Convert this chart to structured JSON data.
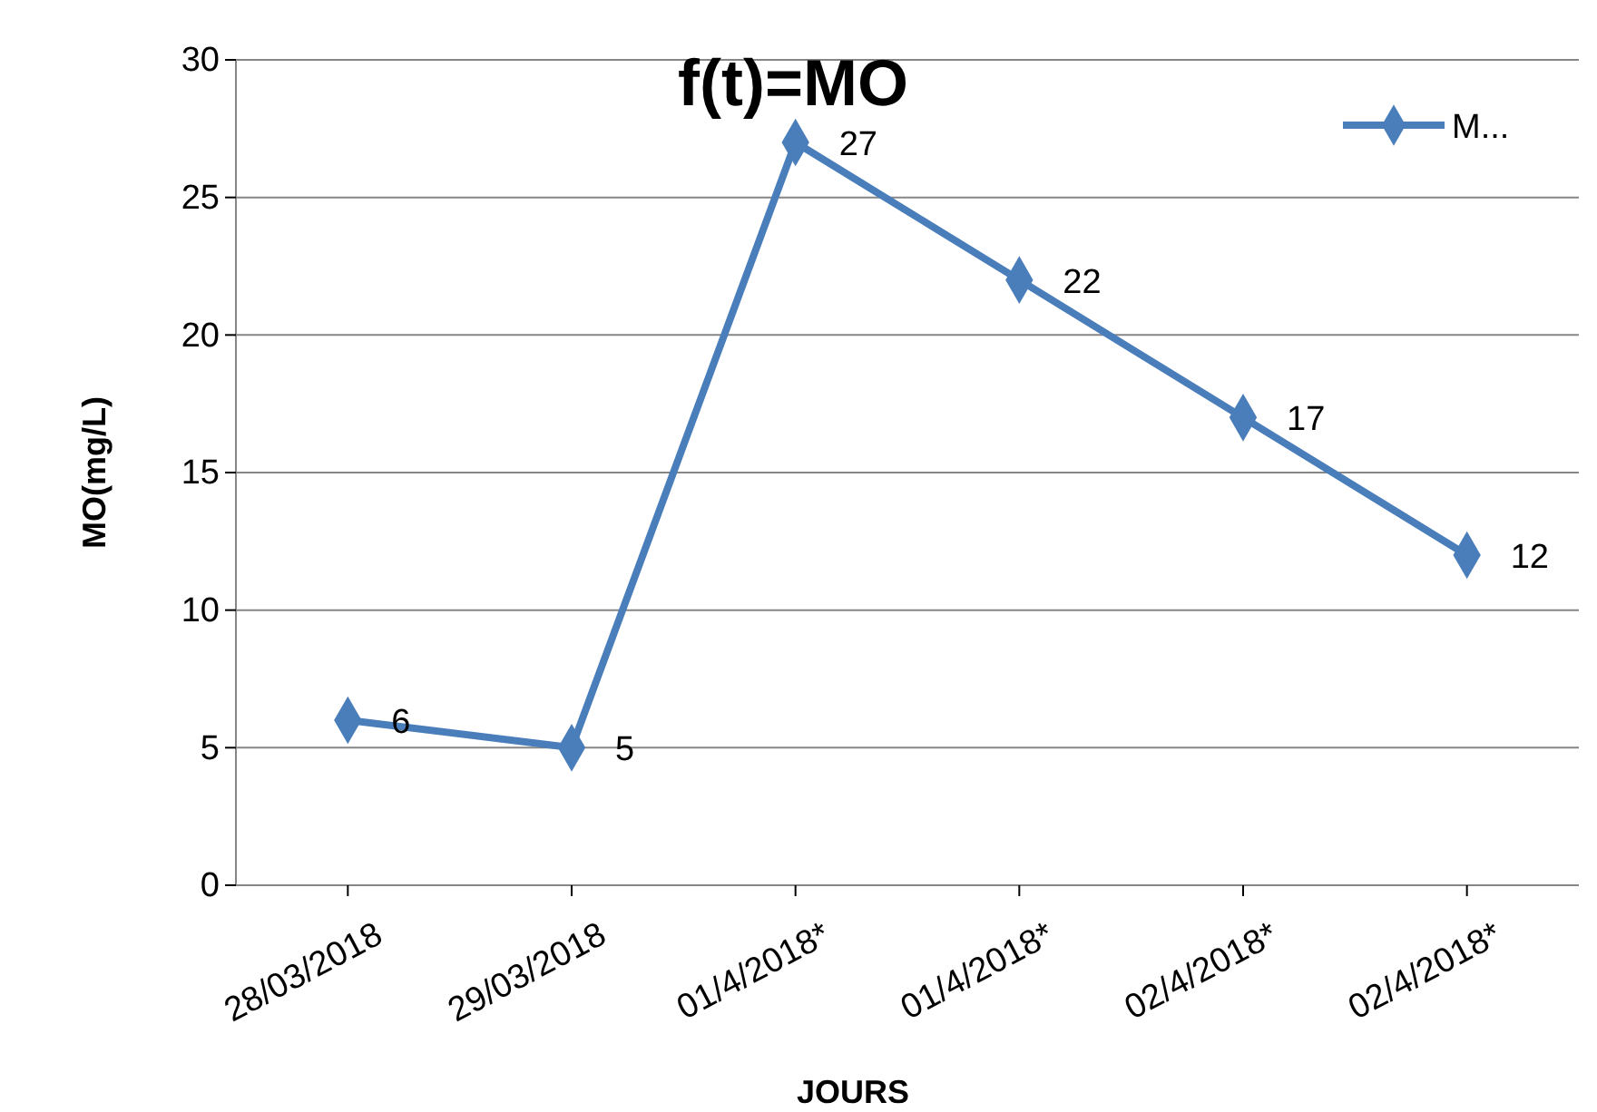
{
  "chart_data": {
    "type": "line",
    "title": "f(t)=MO",
    "xlabel": "JOURS",
    "ylabel": "MO(mg/L)",
    "categories": [
      "28/03/2018",
      "29/03/2018",
      "01/4/2018*",
      "01/4/2018*",
      "02/4/2018*",
      "02/4/2018*"
    ],
    "series": [
      {
        "name": "M...",
        "color": "#4a7ebb",
        "values": [
          6,
          5,
          27,
          22,
          17,
          12
        ]
      }
    ],
    "ylim": [
      0,
      30
    ],
    "yticks": [
      0,
      5,
      10,
      15,
      20,
      25,
      30
    ],
    "grid": "y",
    "legend": "top right",
    "marker": "diamond",
    "data_labels": true
  }
}
